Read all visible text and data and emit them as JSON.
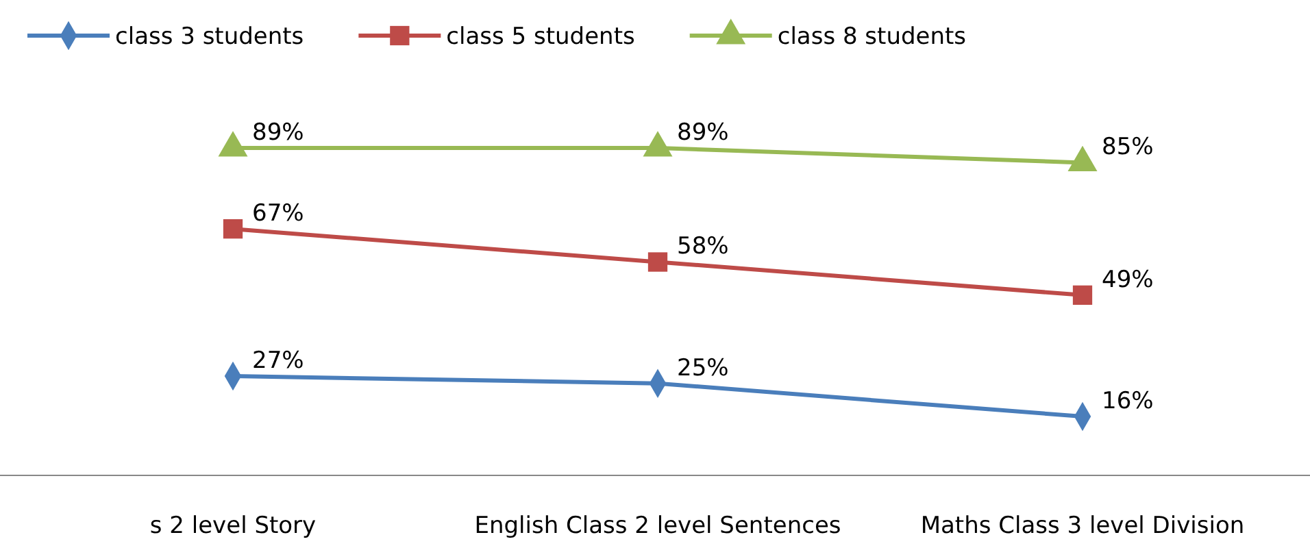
{
  "chart_data": {
    "type": "line",
    "categories": [
      "s 2 level Story",
      "English Class 2 level Sentences",
      "Maths Class 3 level Division"
    ],
    "legend": "top",
    "tick_labels": "x",
    "series": [
      {
        "name": "class 3 students",
        "color": "#4a7ebb",
        "marker": "diamond",
        "values": [
          27,
          25,
          16
        ],
        "value_labels": [
          "27%",
          "25%",
          "16%"
        ]
      },
      {
        "name": "class 5 students",
        "color": "#be4b48",
        "marker": "square",
        "values": [
          67,
          58,
          49
        ],
        "value_labels": [
          "67%",
          "58%",
          "49%"
        ]
      },
      {
        "name": "class 8 students",
        "color": "#98b954",
        "marker": "triangle",
        "values": [
          89,
          89,
          85
        ],
        "value_labels": [
          "89%",
          "89%",
          "85%"
        ]
      }
    ]
  }
}
